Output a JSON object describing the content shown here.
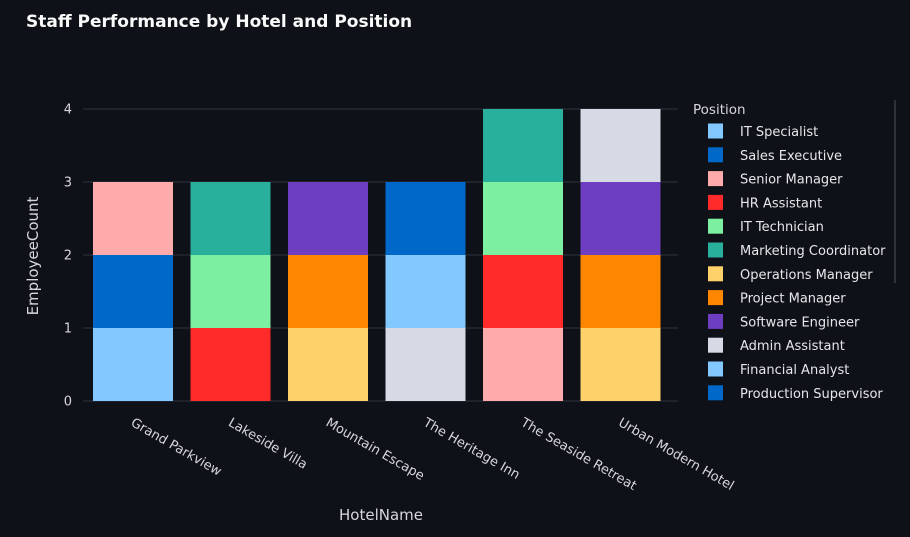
{
  "chart_data": {
    "type": "bar",
    "stacked": true,
    "title": "Staff Performance by Hotel and Position",
    "xlabel": "HotelName",
    "ylabel": "EmployeeCount",
    "ylim": [
      0,
      4
    ],
    "yticks": [
      0,
      1,
      2,
      3,
      4
    ],
    "grid": true,
    "legend_title": "Position",
    "legend_placement": "right",
    "categories": [
      "Grand Parkview",
      "Lakeside Villa",
      "Mountain Escape",
      "The Heritage Inn",
      "The Seaside Retreat",
      "Urban Modern Hotel"
    ],
    "legend": [
      {
        "name": "IT Specialist",
        "color": "#83c9ff"
      },
      {
        "name": "Sales Executive",
        "color": "#0068c9"
      },
      {
        "name": "Senior Manager",
        "color": "#ffabab"
      },
      {
        "name": "HR Assistant",
        "color": "#ff2b2b"
      },
      {
        "name": "IT Technician",
        "color": "#7defa1"
      },
      {
        "name": "Marketing Coordinator",
        "color": "#29b09d"
      },
      {
        "name": "Operations Manager",
        "color": "#ffd16a"
      },
      {
        "name": "Project Manager",
        "color": "#ff8700"
      },
      {
        "name": "Software Engineer",
        "color": "#6d3fc0"
      },
      {
        "name": "Admin Assistant",
        "color": "#d5dae5"
      },
      {
        "name": "Financial Analyst",
        "color": "#83c9ff"
      },
      {
        "name": "Production Supervisor",
        "color": "#0068c9"
      }
    ],
    "stacks": [
      {
        "hotel": "Grand Parkview",
        "segments": [
          {
            "position": "IT Specialist",
            "value": 1
          },
          {
            "position": "Sales Executive",
            "value": 1
          },
          {
            "position": "Senior Manager",
            "value": 1
          }
        ]
      },
      {
        "hotel": "Lakeside Villa",
        "segments": [
          {
            "position": "HR Assistant",
            "value": 1
          },
          {
            "position": "IT Technician",
            "value": 1
          },
          {
            "position": "Marketing Coordinator",
            "value": 1
          }
        ]
      },
      {
        "hotel": "Mountain Escape",
        "segments": [
          {
            "position": "Operations Manager",
            "value": 1
          },
          {
            "position": "Project Manager",
            "value": 1
          },
          {
            "position": "Software Engineer",
            "value": 1
          }
        ]
      },
      {
        "hotel": "The Heritage Inn",
        "segments": [
          {
            "position": "Admin Assistant",
            "value": 1
          },
          {
            "position": "Financial Analyst",
            "value": 1
          },
          {
            "position": "Production Supervisor",
            "value": 1
          }
        ]
      },
      {
        "hotel": "The Seaside Retreat",
        "segments": [
          {
            "position": "Senior Manager",
            "value": 1
          },
          {
            "position": "HR Assistant",
            "value": 1
          },
          {
            "position": "IT Technician",
            "value": 1
          },
          {
            "position": "Marketing Coordinator",
            "value": 1
          }
        ]
      },
      {
        "hotel": "Urban Modern Hotel",
        "segments": [
          {
            "position": "Operations Manager",
            "value": 1
          },
          {
            "position": "Project Manager",
            "value": 1
          },
          {
            "position": "Software Engineer",
            "value": 1
          },
          {
            "position": "Admin Assistant",
            "value": 1
          }
        ]
      }
    ]
  }
}
